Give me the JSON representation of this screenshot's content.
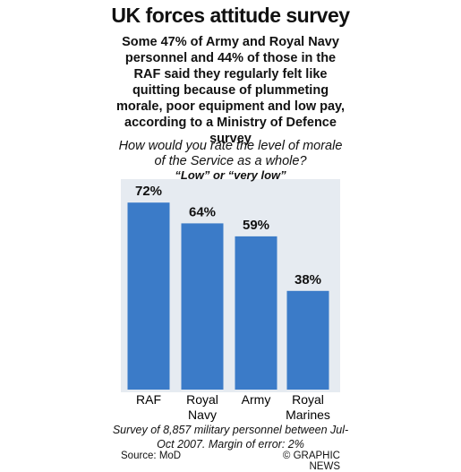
{
  "chart_data": {
    "type": "bar",
    "title": "UK forces attitude survey",
    "subtitle": "Some 47% of Army and Royal Navy personnel and 44% of those in the RAF said they regularly felt like quitting because of plummeting morale, poor equipment and low pay, according to a Ministry of Defence survey",
    "question": "How would you rate the level of morale of the Service as a whole?",
    "question_subtitle": "“Low” or “very low”",
    "categories": [
      "RAF",
      "Royal Navy",
      "Army",
      "Royal Marines"
    ],
    "values": [
      72,
      64,
      59,
      38
    ],
    "value_labels": [
      "72%",
      "64%",
      "59%",
      "38%"
    ],
    "color": "#3b7bc8",
    "ylim": [
      0,
      80
    ],
    "note": "Survey of 8,857 military personnel between Jul-Oct 2007. Margin of error: 2%",
    "source": "Source: MoD",
    "credit": "© GRAPHIC NEWS"
  }
}
